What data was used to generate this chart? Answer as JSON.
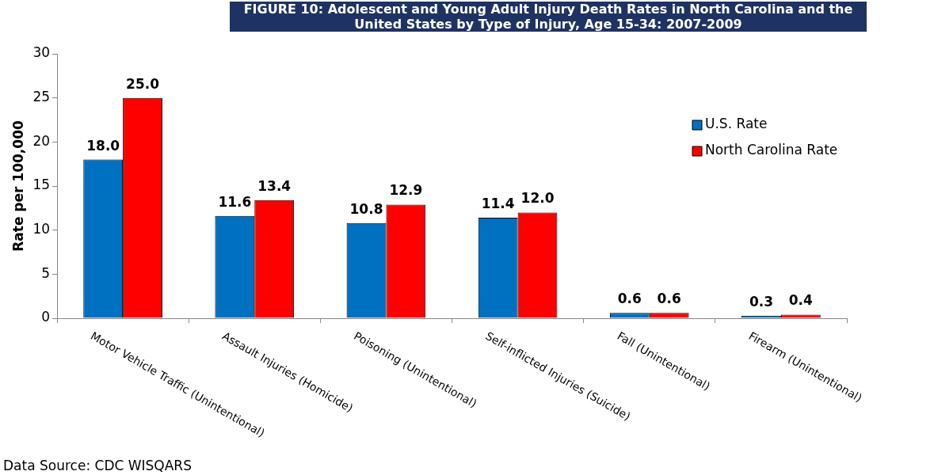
{
  "chart_data": {
    "type": "bar",
    "title": "FIGURE 10:  Adolescent and Young Adult Injury Death Rates in North Carolina and the United States by Type of Injury, Age 15-34: 2007-2009",
    "ylabel": "Rate per 100,000",
    "categories": [
      "Motor Vehicle Traffic (Unintentional)",
      "Assault Injuries (Homicide)",
      "Poisoning (Unintentional)",
      "Self-inflicted Injuries (Suicide)",
      "Fall (Unintentional)",
      "Firearm (Unintentional)"
    ],
    "series": [
      {
        "name": "U.S. Rate",
        "color": "#0070c0",
        "values": [
          18.0,
          11.6,
          10.8,
          11.4,
          0.6,
          0.3
        ],
        "value_labels": [
          "18.0",
          "11.6",
          "10.8",
          "11.4",
          "0.6",
          "0.3"
        ]
      },
      {
        "name": "North Carolina Rate",
        "color": "#ff0000",
        "values": [
          25.0,
          13.4,
          12.9,
          12.0,
          0.6,
          0.4
        ],
        "value_labels": [
          "25.0",
          "13.4",
          "12.9",
          "12.0",
          "0.6",
          "0.4"
        ]
      }
    ],
    "ylim": [
      0,
      30
    ],
    "yticks": [
      0,
      5,
      10,
      15,
      20,
      25,
      30
    ],
    "grid": false,
    "legend": "top right",
    "annotations": [
      "Data Source: CDC WISQARS"
    ]
  }
}
